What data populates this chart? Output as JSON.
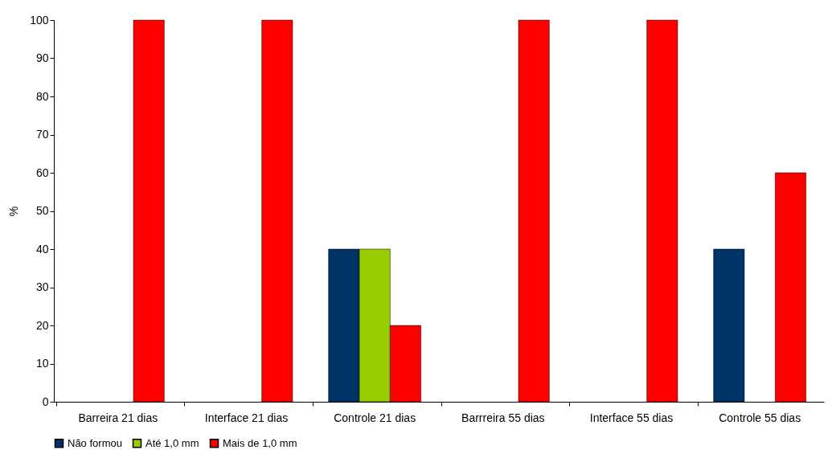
{
  "chart_data": {
    "type": "bar",
    "ylabel": "%",
    "categories": [
      "Barreira 21 dias",
      "Interface 21 dias",
      "Controle 21 dias",
      "Barrreira 55 dias",
      "Interface 55 dias",
      "Controle 55 dias"
    ],
    "series": [
      {
        "name": "Não formou",
        "color": "#003366",
        "values": [
          0,
          0,
          40,
          0,
          0,
          40
        ]
      },
      {
        "name": "Até 1,0 mm",
        "color": "#99cc00",
        "values": [
          0,
          0,
          40,
          0,
          0,
          0
        ]
      },
      {
        "name": "Mais de 1,0 mm",
        "color": "#ff0000",
        "values": [
          100,
          100,
          20,
          100,
          100,
          60
        ]
      }
    ],
    "ylim": [
      0,
      100
    ],
    "yticks": [
      0,
      10,
      20,
      30,
      40,
      50,
      60,
      70,
      80,
      90,
      100
    ],
    "grid": false,
    "legend": "bottom"
  }
}
